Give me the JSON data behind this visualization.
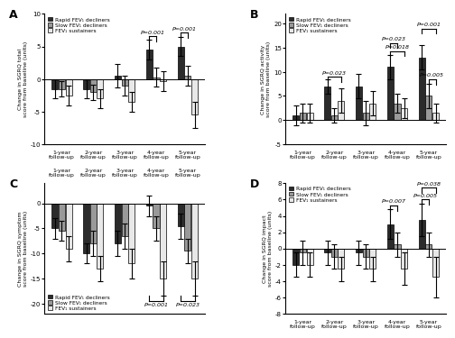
{
  "panel_A": {
    "title": "A",
    "ylabel": "Change in SGRQ total\nscore from baseline (units)",
    "ylim": [
      -10,
      10
    ],
    "yticks": [
      -10,
      -5,
      0,
      5,
      10
    ],
    "groups": [
      "1-year\nfollow-up",
      "2-year\nfollow-up",
      "3-year\nfollow-up",
      "4-year\nfollow-up",
      "5-year\nfollow-up"
    ],
    "rapid": [
      -1.5,
      -1.5,
      0.5,
      4.5,
      5.0
    ],
    "slow": [
      -1.5,
      -2.0,
      -1.0,
      0.3,
      0.5
    ],
    "sustain": [
      -2.5,
      -3.0,
      -3.5,
      -0.3,
      -5.5
    ],
    "rapid_err": [
      1.5,
      1.5,
      1.8,
      1.5,
      1.5
    ],
    "slow_err": [
      1.2,
      1.2,
      1.5,
      1.5,
      1.5
    ],
    "sustain_err": [
      1.5,
      1.5,
      1.5,
      1.5,
      2.0
    ],
    "legend_loc": "upper left",
    "xticks_top": false
  },
  "panel_B": {
    "title": "B",
    "ylabel": "Change in SGRQ activity\nscore from baseline (units)",
    "ylim": [
      -5,
      22
    ],
    "yticks": [
      -5,
      0,
      5,
      10,
      15,
      20
    ],
    "groups": [
      "1-year\nfollow-up",
      "2-year\nfollow-up",
      "3-year\nfollow-up",
      "4-year\nfollow-up",
      "5-year\nfollow-up"
    ],
    "rapid": [
      1.0,
      7.0,
      7.0,
      11.0,
      13.0
    ],
    "slow": [
      1.5,
      1.0,
      1.5,
      3.5,
      5.0
    ],
    "sustain": [
      1.5,
      4.0,
      3.5,
      2.5,
      1.5
    ],
    "rapid_err": [
      2.0,
      1.5,
      2.5,
      2.5,
      2.5
    ],
    "slow_err": [
      2.0,
      1.5,
      2.5,
      2.0,
      2.5
    ],
    "sustain_err": [
      2.0,
      2.5,
      2.5,
      2.0,
      2.0
    ],
    "legend_loc": "upper left",
    "xticks_top": false
  },
  "panel_C": {
    "title": "C",
    "ylabel": "Change in SGRQ symptom\nscore from baseline (units)",
    "ylim": [
      -22,
      4
    ],
    "yticks": [
      -20,
      -15,
      -10,
      -5,
      0
    ],
    "groups": [
      "1-year\nfollow-up",
      "2-year\nfollow-up",
      "3-year\nfollow-up",
      "4-year\nfollow-up",
      "5-year\nfollow-up"
    ],
    "rapid": [
      -5.0,
      -10.0,
      -8.0,
      -0.5,
      -4.5
    ],
    "slow": [
      -5.5,
      -8.0,
      -6.5,
      -5.0,
      -9.5
    ],
    "sustain": [
      -9.0,
      -13.0,
      -12.0,
      -15.0,
      -15.0
    ],
    "rapid_err": [
      2.0,
      2.0,
      2.5,
      2.0,
      2.5
    ],
    "slow_err": [
      2.0,
      2.5,
      2.5,
      2.5,
      2.5
    ],
    "sustain_err": [
      2.5,
      2.5,
      3.0,
      3.5,
      3.5
    ],
    "legend_loc": "lower left",
    "xticks_top": true
  },
  "panel_D": {
    "title": "D",
    "ylabel": "Change in SGRQ impact\nscore from baseline (units)",
    "ylim": [
      -8,
      8
    ],
    "yticks": [
      -8,
      -6,
      -4,
      -2,
      0,
      2,
      4,
      6,
      8
    ],
    "groups": [
      "1-year\nfollow-up",
      "2-year\nfollow-up",
      "3-year\nfollow-up",
      "4-year\nfollow-up",
      "5-year\nfollow-up"
    ],
    "rapid": [
      -2.0,
      -0.5,
      -0.5,
      3.0,
      3.5
    ],
    "slow": [
      -0.5,
      -1.0,
      -1.0,
      0.5,
      0.5
    ],
    "sustain": [
      -2.0,
      -2.5,
      -2.5,
      -2.5,
      -3.5
    ],
    "rapid_err": [
      1.5,
      1.5,
      1.5,
      1.8,
      2.0
    ],
    "slow_err": [
      1.5,
      1.5,
      1.5,
      1.5,
      1.5
    ],
    "sustain_err": [
      1.5,
      1.5,
      1.5,
      2.0,
      2.5
    ],
    "legend_loc": "upper left",
    "xticks_top": false
  },
  "colors": {
    "rapid": "#2b2b2b",
    "slow": "#999999",
    "sustain": "#e8e8e8"
  },
  "bar_width": 0.22,
  "legend_labels": [
    "Rapid FEV₁ decliners",
    "Slow FEV₁ decliners",
    "FEV₁ sustainers"
  ]
}
